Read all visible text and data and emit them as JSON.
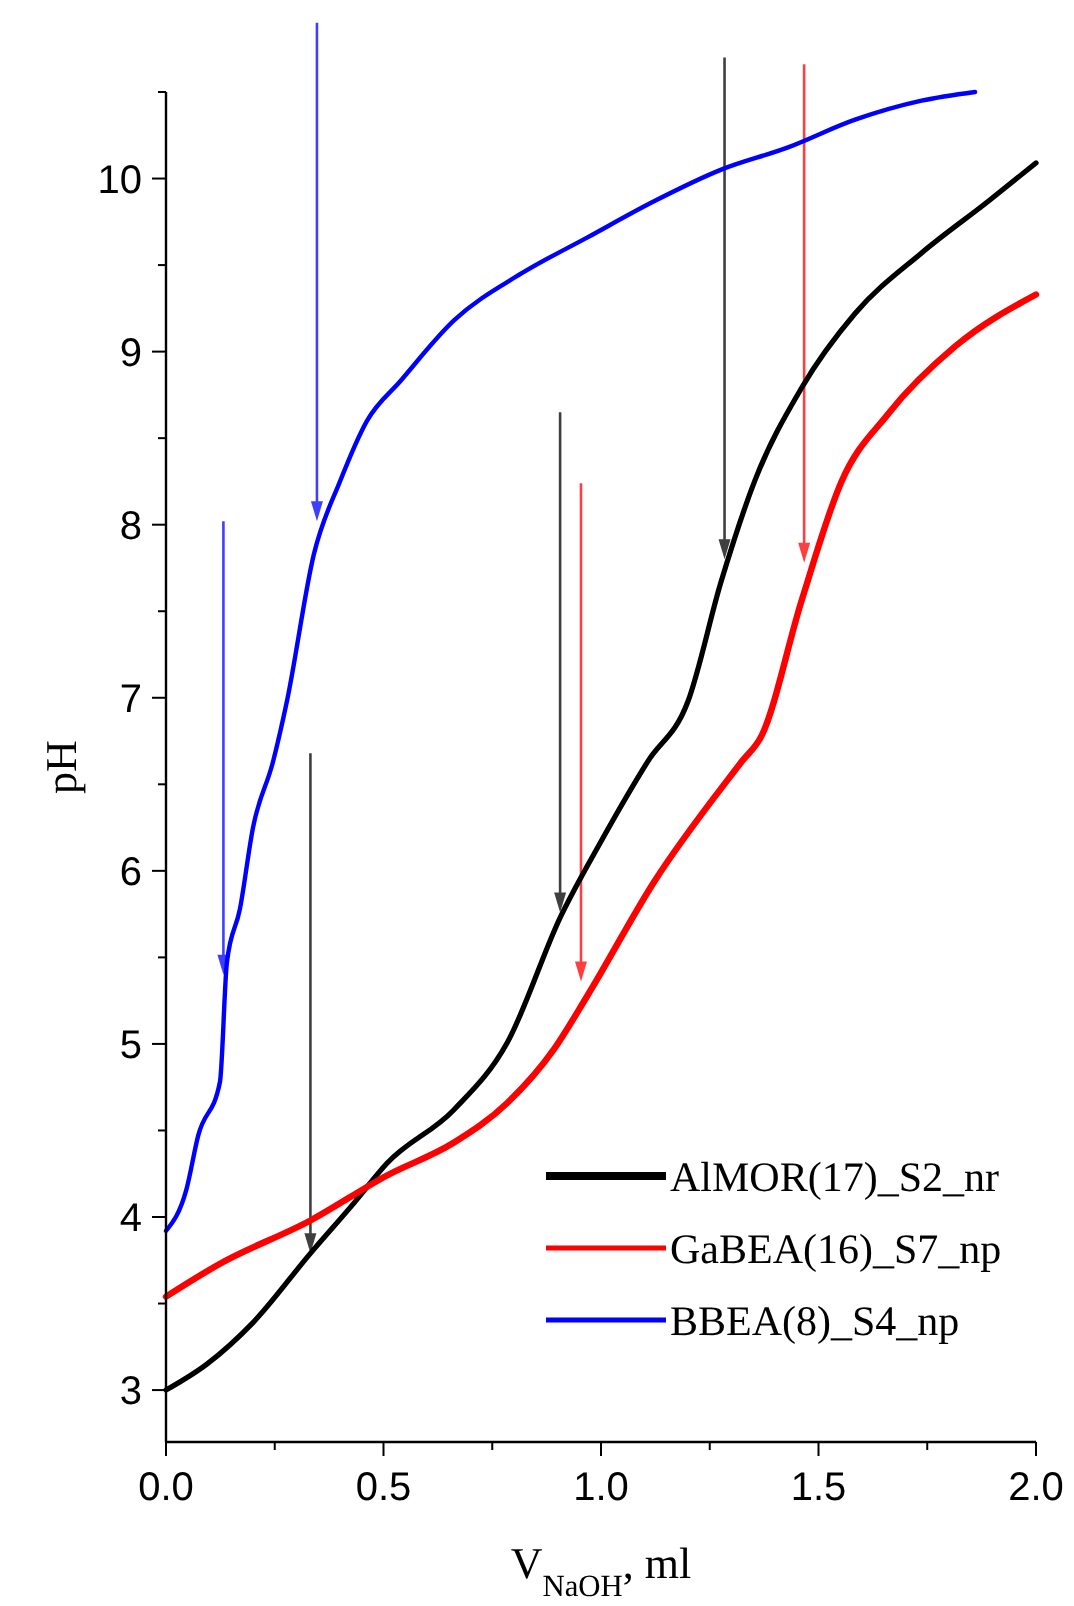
{
  "chart_data": {
    "type": "line",
    "xlabel": "V$_{NaOH}$, ml",
    "ylabel": "pH",
    "xlim": [
      0,
      2
    ],
    "ylim": [
      2.7,
      10.5
    ],
    "xticks": [
      {
        "value": 0,
        "label": "0.0"
      },
      {
        "value": 0.25,
        "label": null
      },
      {
        "value": 0.5,
        "label": "0.5"
      },
      {
        "value": 0.75,
        "label": null
      },
      {
        "value": 1,
        "label": "1.0"
      },
      {
        "value": 1.25,
        "label": null
      },
      {
        "value": 1.5,
        "label": "1.5"
      },
      {
        "value": 1.75,
        "label": null
      },
      {
        "value": 2,
        "label": "2.0"
      }
    ],
    "yticks": [
      3,
      {
        "value": 3.5,
        "label": null
      },
      4,
      {
        "value": 4.5,
        "label": null
      },
      5,
      {
        "value": 5.5,
        "label": null
      },
      6,
      {
        "value": 6.5,
        "label": null
      },
      7,
      {
        "value": 7.5,
        "label": null
      },
      8,
      {
        "value": 8.5,
        "label": null
      },
      9,
      {
        "value": 9.5,
        "label": null
      },
      10,
      {
        "value": 10.5,
        "label": null
      }
    ],
    "grid": false,
    "legend": "bottom right",
    "marker": "none",
    "line_style": "solid",
    "series": [
      {
        "name": "AlMOR(17)_S2_nr",
        "color": "#000000",
        "x": [
          0,
          0.094,
          0.2,
          0.332,
          0.432,
          0.508,
          0.662,
          0.785,
          0.908,
          1.0,
          1.107,
          1.2,
          1.276,
          1.353,
          1.461,
          1.584,
          1.737,
          1.891,
          2.0
        ],
        "values": [
          3.0,
          3.15,
          3.39,
          3.79,
          4.08,
          4.31,
          4.62,
          5.01,
          5.74,
          6.17,
          6.63,
          6.98,
          7.67,
          8.25,
          8.79,
          9.22,
          9.57,
          9.87,
          10.09
        ]
      },
      {
        "name": "GaBEA(16)_S7_np",
        "color": "#ff0000",
        "x": [
          0,
          0.124,
          0.332,
          0.508,
          0.662,
          0.785,
          0.892,
          0.969,
          1.123,
          1.323,
          1.369,
          1.461,
          1.553,
          1.66,
          1.814,
          2.0
        ],
        "values": [
          3.54,
          3.73,
          3.98,
          4.24,
          4.43,
          4.66,
          4.97,
          5.28,
          5.94,
          6.63,
          6.78,
          7.56,
          8.25,
          8.64,
          9.03,
          9.33
        ]
      },
      {
        "name": "BBEA(8)_S4_np",
        "color": "#0000ff",
        "x": [
          0,
          0.047,
          0.074,
          0.124,
          0.14,
          0.17,
          0.2,
          0.246,
          0.278,
          0.34,
          0.4,
          0.462,
          0.539,
          0.662,
          0.816,
          0.969,
          1.123,
          1.275,
          1.43,
          1.584,
          1.737,
          1.86
        ],
        "values": [
          3.92,
          4.16,
          4.47,
          4.78,
          5.47,
          5.78,
          6.25,
          6.63,
          6.98,
          7.83,
          8.25,
          8.6,
          8.83,
          9.18,
          9.45,
          9.66,
          9.87,
          10.05,
          10.18,
          10.34,
          10.45,
          10.5
        ]
      }
    ]
  }
}
